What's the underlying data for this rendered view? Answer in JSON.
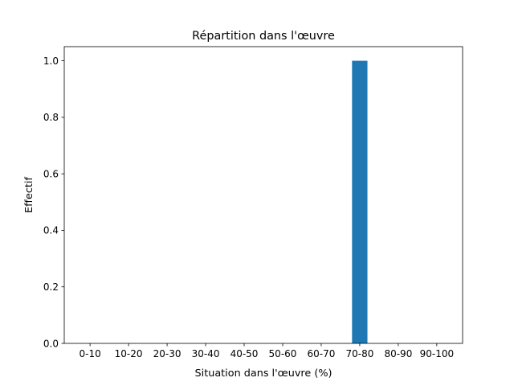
{
  "chart_data": {
    "type": "bar",
    "title": "Répartition dans l'œuvre",
    "xlabel": "Situation dans l'œuvre (%)",
    "ylabel": "Effectif",
    "categories": [
      "0-10",
      "10-20",
      "20-30",
      "30-40",
      "40-50",
      "50-60",
      "60-70",
      "70-80",
      "80-90",
      "90-100"
    ],
    "values": [
      0,
      0,
      0,
      0,
      0,
      0,
      0,
      1,
      0,
      0
    ],
    "ylim": [
      0,
      1.05
    ],
    "yticks": [
      "0.0",
      "0.2",
      "0.4",
      "0.6",
      "0.8",
      "1.0"
    ],
    "grid": false,
    "bar_color": "#1f77b4"
  }
}
